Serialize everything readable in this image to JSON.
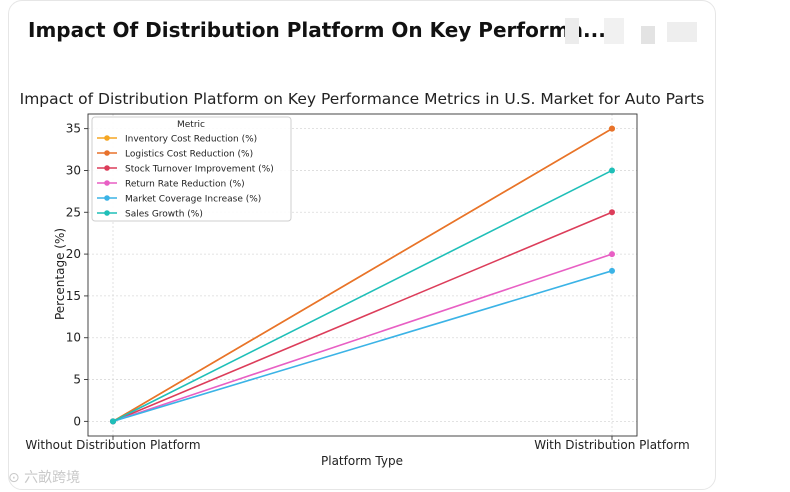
{
  "card": {
    "title": "Impact Of Distribution Platform On Key Performa..."
  },
  "watermark": {
    "text": "⊙ 六畝跨境"
  },
  "chart_data": {
    "type": "line",
    "title": "Impact of Distribution Platform on Key Performance Metrics in U.S. Market for Auto Parts",
    "xlabel": "Platform Type",
    "ylabel": "Percentage (%)",
    "categories": [
      "Without Distribution Platform",
      "With Distribution Platform"
    ],
    "ylim": [
      -1.75,
      36.75
    ],
    "yticks": [
      0,
      5,
      10,
      15,
      20,
      25,
      30,
      35
    ],
    "grid": true,
    "legend_title": "Metric",
    "legend_position": "top-left",
    "series": [
      {
        "name": "Inventory Cost Reduction (%)",
        "values": [
          0,
          35
        ],
        "color": "#f5a623"
      },
      {
        "name": "Logistics Cost Reduction (%)",
        "values": [
          0,
          35
        ],
        "color": "#e8722c"
      },
      {
        "name": "Stock Turnover Improvement (%)",
        "values": [
          0,
          25
        ],
        "color": "#dc3d5a"
      },
      {
        "name": "Return Rate Reduction (%)",
        "values": [
          0,
          20
        ],
        "color": "#e85fc4"
      },
      {
        "name": "Market Coverage Increase (%)",
        "values": [
          0,
          18
        ],
        "color": "#3bb3e6"
      },
      {
        "name": "Sales Growth (%)",
        "values": [
          0,
          30
        ],
        "color": "#1fbfb8"
      }
    ]
  }
}
